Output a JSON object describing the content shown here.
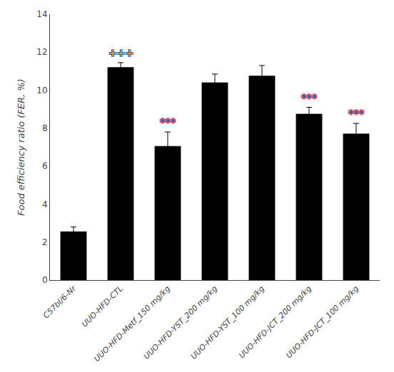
{
  "chart_data": {
    "type": "bar",
    "ylabel": "Food efficiency ratio (FER, %)",
    "categories": [
      "C57bl/6-Nr",
      "UUO-HFD-CTL",
      "UUO-HFD-Metf_150 mg/kg",
      "UUO-HFD-YST_200 mg/kg",
      "UUO-HFD-YST_100 mg/kg",
      "UUO-HFD-JCT_200 mg/kg",
      "UUO-HFD-JCT_100 mg/kg"
    ],
    "values": [
      2.55,
      11.2,
      7.05,
      10.4,
      10.75,
      8.75,
      7.7
    ],
    "errors": [
      0.25,
      0.25,
      0.75,
      0.45,
      0.55,
      0.35,
      0.55
    ],
    "color": "#000000",
    "ylim": [
      0,
      14
    ],
    "yticks": [
      0,
      2,
      4,
      6,
      8,
      10,
      12,
      14
    ],
    "grid": false,
    "annotations": [
      {
        "category": "UUO-HFD-CTL",
        "text": "+++",
        "color": "#ff8c00",
        "outline_color": "#1a6ab5"
      },
      {
        "category": "UUO-HFD-Metf_150 mg/kg",
        "text": "***",
        "color": "#1a6ab5",
        "outline_color": "#ff4444"
      },
      {
        "category": "UUO-HFD-JCT_200 mg/kg",
        "text": "***",
        "color": "#1a6ab5",
        "outline_color": "#ff4444"
      },
      {
        "category": "UUO-HFD-JCT_100 mg/kg",
        "text": "***",
        "color": "#1a6ab5",
        "outline_color": "#ff4444"
      }
    ]
  }
}
